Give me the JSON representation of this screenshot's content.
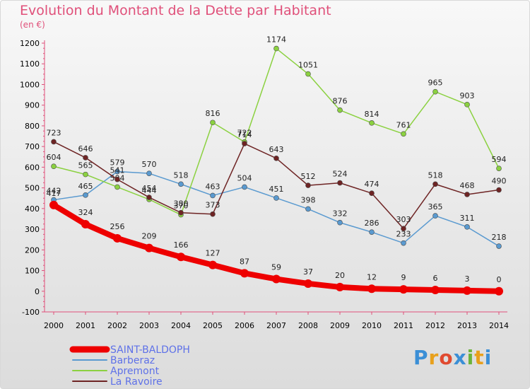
{
  "title": "Evolution du Montant de la Dette par Habitant",
  "unit": "(en €)",
  "logo": {
    "text": "Proxiti",
    "colors": [
      "#3b8fd6",
      "#e8a01c",
      "#e04a30",
      "#3b8fd6",
      "#6bb33a",
      "#e8a01c",
      "#3b8fd6"
    ]
  },
  "chart_data": {
    "type": "line",
    "title": "Evolution du Montant de la Dette par Habitant",
    "ylabel": "(en €)",
    "xlabel": "",
    "x": [
      "2000",
      "2001",
      "2002",
      "2003",
      "2004",
      "2005",
      "2006",
      "2007",
      "2008",
      "2009",
      "2010",
      "2011",
      "2012",
      "2013",
      "2014"
    ],
    "ylim": [
      -100,
      1200
    ],
    "yticks": [
      -100,
      0,
      100,
      200,
      300,
      400,
      500,
      600,
      700,
      800,
      900,
      1000,
      1100,
      1200
    ],
    "grid": false,
    "legend": "bottom-left",
    "series": [
      {
        "name": "Barberaz",
        "color": "#5a9ad0",
        "values": [
          442,
          465,
          579,
          570,
          518,
          463,
          504,
          451,
          398,
          332,
          286,
          233,
          365,
          311,
          218
        ],
        "labels": [
          "442",
          "465",
          "579",
          "570",
          "518",
          "463",
          "504",
          "451",
          "398",
          "332",
          "286",
          "233",
          "365",
          "311",
          "218"
        ]
      },
      {
        "name": "Apremont",
        "color": "#8bd140",
        "values": [
          604,
          565,
          504,
          444,
          370,
          816,
          722,
          1174,
          1051,
          876,
          814,
          761,
          965,
          903,
          594
        ],
        "labels": [
          "604",
          "565",
          "504",
          "444",
          "370",
          "816",
          "722",
          "1174",
          "1051",
          "876",
          "814",
          "761",
          "965",
          "903",
          "594"
        ]
      },
      {
        "name": "La Ravoire",
        "color": "#6e2424",
        "values": [
          723,
          646,
          541,
          454,
          380,
          373,
          714,
          643,
          512,
          524,
          474,
          303,
          518,
          468,
          490
        ],
        "labels": [
          "723",
          "646",
          "541",
          "454",
          "380",
          "373",
          "714",
          "643",
          "512",
          "524",
          "474",
          "303",
          "518",
          "468",
          "490"
        ]
      },
      {
        "name": "SAINT-BALDOPH",
        "color": "#ee0000",
        "values": [
          417,
          324,
          256,
          209,
          166,
          127,
          87,
          59,
          37,
          20,
          12,
          9,
          6,
          3,
          0
        ],
        "labels": [
          "417",
          "324",
          "256",
          "209",
          "166",
          "127",
          "87",
          "59",
          "37",
          "20",
          "12",
          "9",
          "6",
          "3",
          "0"
        ]
      }
    ]
  }
}
